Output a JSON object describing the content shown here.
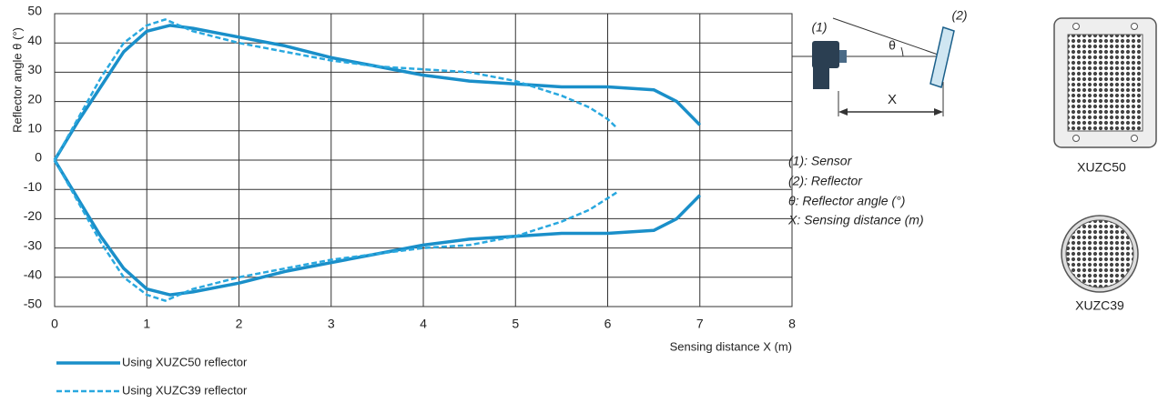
{
  "chart_data": {
    "type": "line",
    "ylabel": "Reflector angle θ (°)",
    "xlabel": "Sensing distance X (m)",
    "xlim": [
      0,
      8
    ],
    "xticks": [
      0,
      1,
      2,
      3,
      4,
      5,
      6,
      7,
      8
    ],
    "ylim": [
      -50,
      50
    ],
    "yticks": [
      -50,
      -40,
      -30,
      -20,
      -10,
      0,
      10,
      20,
      30,
      40,
      50
    ],
    "grid": true,
    "series": [
      {
        "name": "Using XUZC50 reflector",
        "color": "#1a8fc9",
        "dash": false,
        "x": [
          0,
          0.25,
          0.5,
          0.75,
          1,
          1.25,
          1.5,
          2,
          2.5,
          3,
          3.5,
          4,
          4.5,
          5,
          5.5,
          6,
          6.5,
          6.75,
          7
        ],
        "upper": [
          0,
          13,
          25,
          37,
          44,
          46,
          45,
          42,
          39,
          35,
          32,
          29,
          27,
          26,
          25,
          25,
          24,
          20,
          12
        ],
        "lower": [
          0,
          -13,
          -26,
          -37,
          -44,
          -46,
          -45,
          -42,
          -38,
          -35,
          -32,
          -29,
          -27,
          -26,
          -25,
          -25,
          -24,
          -20,
          -12
        ]
      },
      {
        "name": "Using XUZC39 reflector",
        "color": "#29a8df",
        "dash": true,
        "x": [
          0,
          0.25,
          0.5,
          0.75,
          1,
          1.2,
          1.5,
          2,
          2.5,
          3,
          3.5,
          4,
          4.5,
          5,
          5.5,
          5.8,
          6,
          6.1
        ],
        "upper": [
          0,
          14,
          28,
          40,
          46,
          48,
          44,
          40,
          37,
          34,
          32,
          31,
          30,
          27,
          22,
          18,
          14,
          11
        ],
        "lower": [
          0,
          -14,
          -28,
          -40,
          -46,
          -48,
          -44,
          -40,
          -37,
          -34,
          -32,
          -30,
          -29,
          -26,
          -21,
          -17,
          -13,
          -11
        ]
      }
    ]
  },
  "diagram": {
    "sensor_label": "(1)",
    "reflector_label": "(2)",
    "angle_symbol": "θ",
    "distance_symbol": "X",
    "key": [
      "(1): Sensor",
      "(2): Reflector",
      "θ: Reflector angle (°)",
      "X: Sensing distance (m)"
    ]
  },
  "products": [
    "XUZC50",
    "XUZC39"
  ]
}
